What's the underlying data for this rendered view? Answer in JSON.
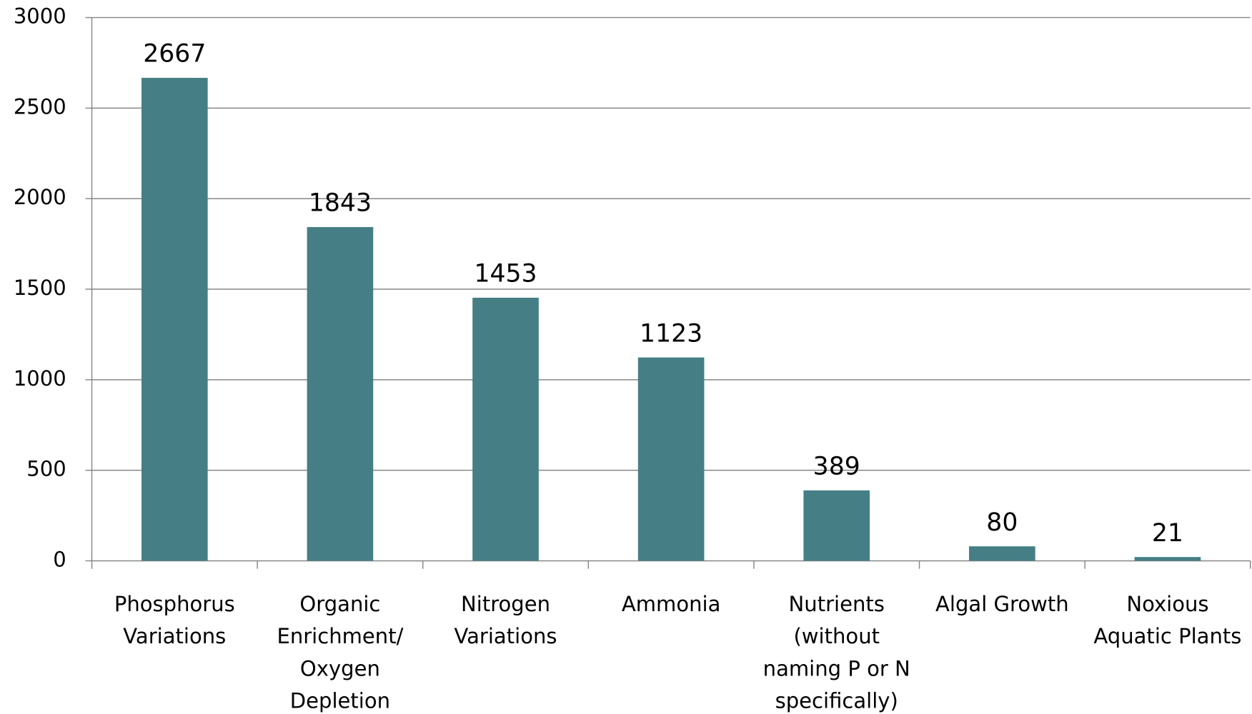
{
  "chart_data": {
    "type": "bar",
    "categories": [
      "Phosphorus\nVariations",
      "Organic\nEnrichment/\nOxygen\nDepletion",
      "Nitrogen\nVariations",
      "Ammonia",
      "Nutrients\n(without\nnaming P or N\nspecifically)",
      "Algal Growth",
      "Noxious\nAquatic Plants"
    ],
    "values": [
      2667,
      1843,
      1453,
      1123,
      389,
      80,
      21
    ],
    "color": "#457f85",
    "ylim": [
      0,
      3000
    ],
    "yticks": [
      0,
      500,
      1000,
      1500,
      2000,
      2500,
      3000
    ],
    "grid": true
  }
}
